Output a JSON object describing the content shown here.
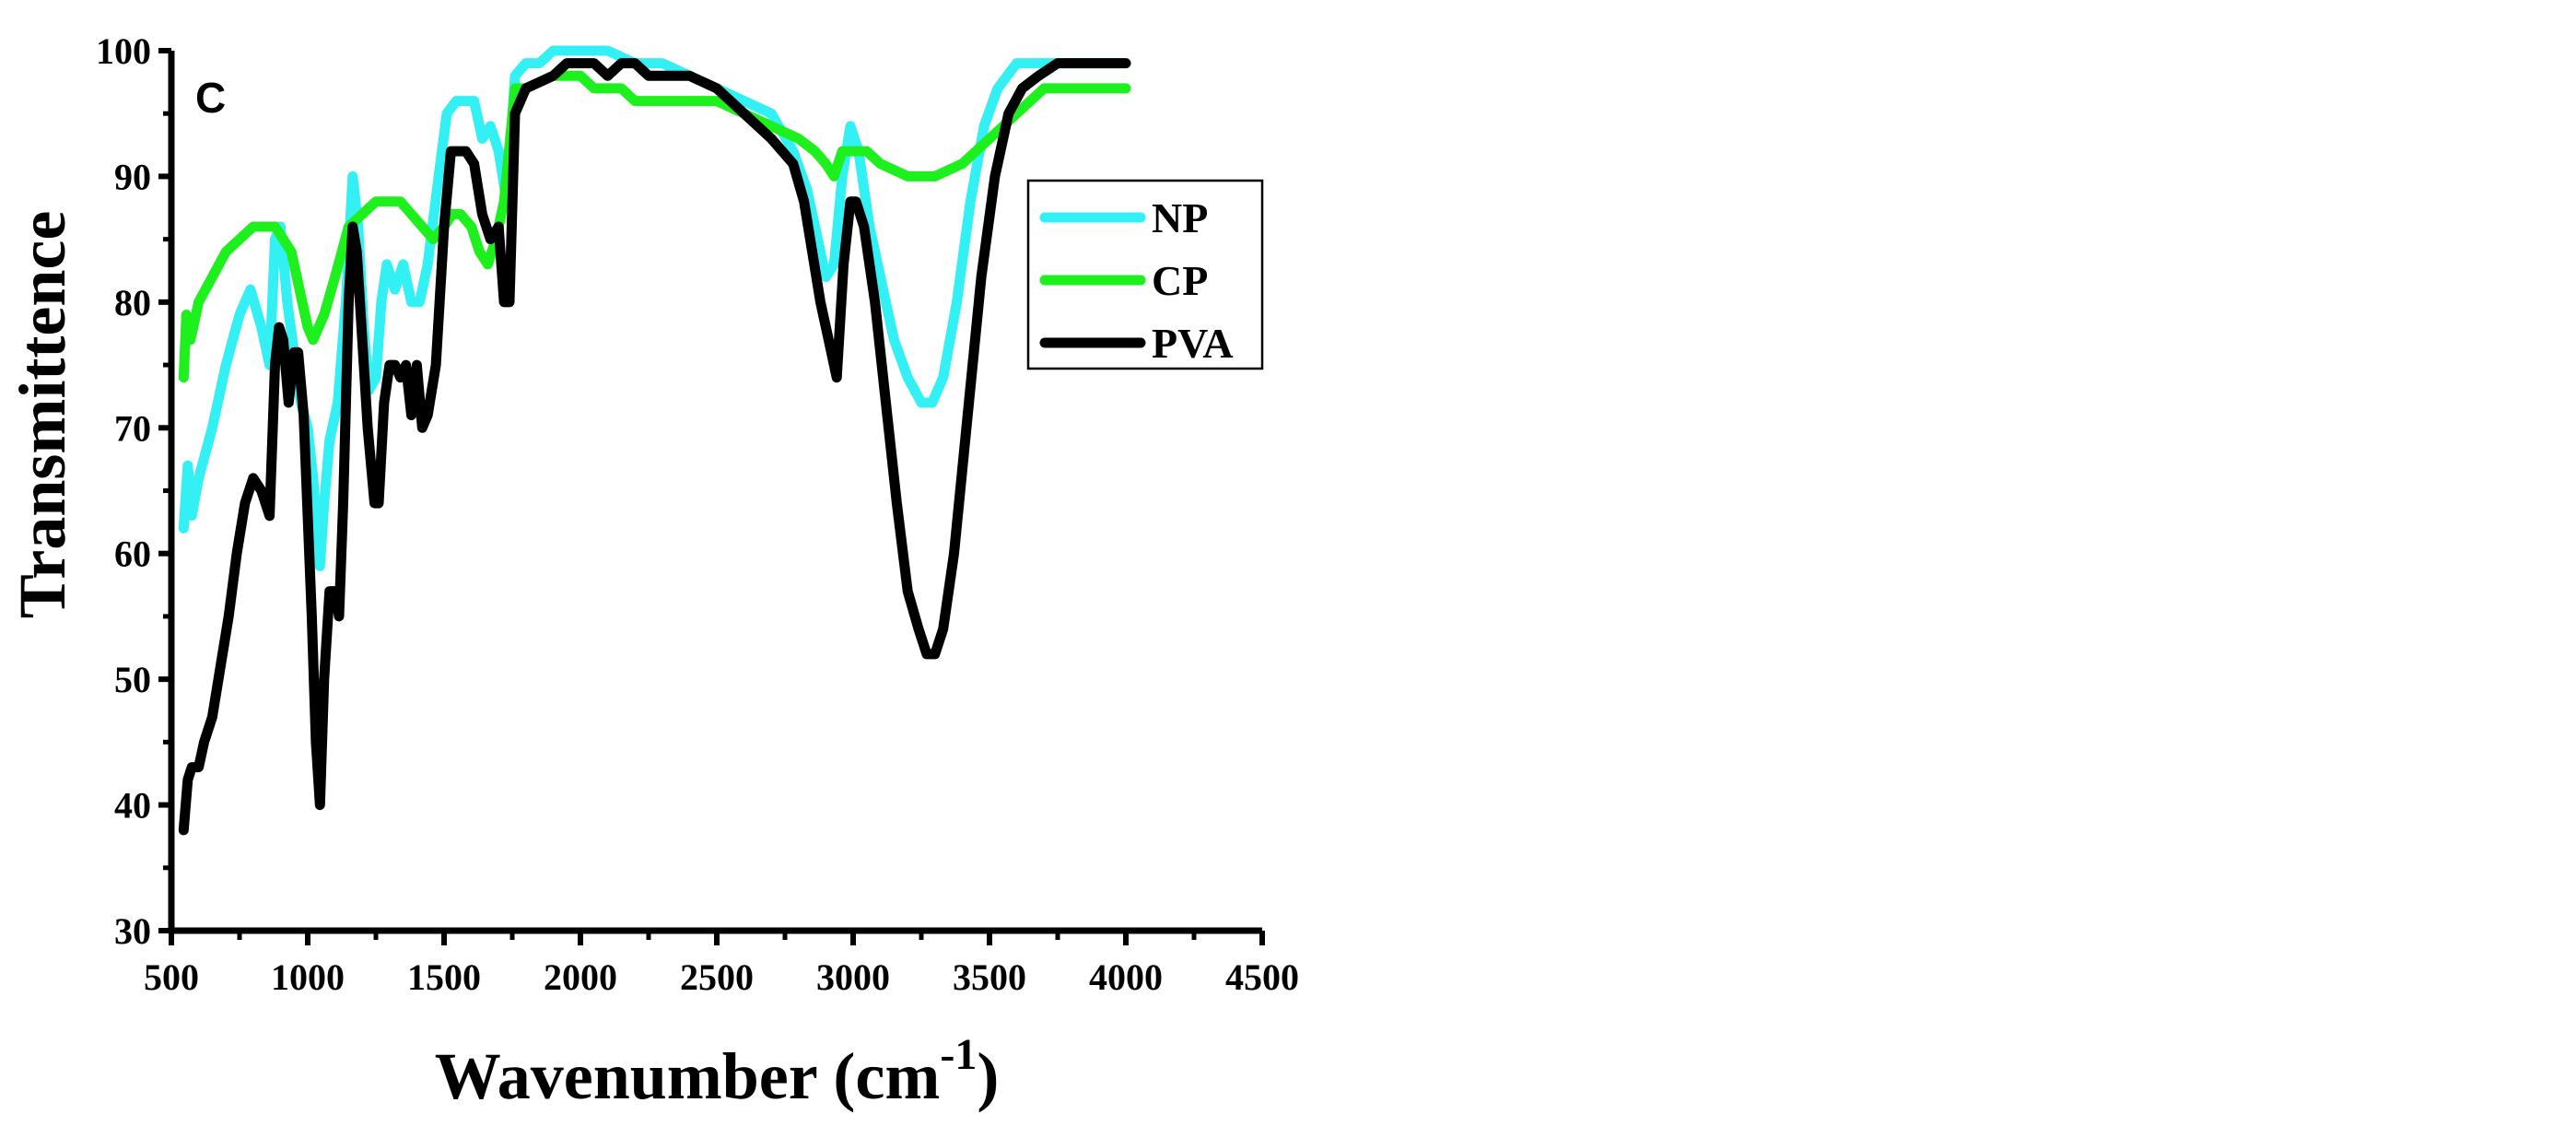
{
  "chart_data": {
    "type": "line",
    "panel_label": "C",
    "xlabel": "Wavenumber (cm",
    "xlabel_sup": "-1",
    "xlabel_close": ")",
    "ylabel": "Transmittence",
    "xlim": [
      500,
      4500
    ],
    "ylim": [
      30,
      100
    ],
    "xticks": [
      "500",
      "1000",
      "1500",
      "2000",
      "2500",
      "3000",
      "3500",
      "4000",
      "4500"
    ],
    "yticks": [
      "30",
      "40",
      "50",
      "60",
      "70",
      "80",
      "90",
      "100"
    ],
    "legend_position": "right",
    "series": [
      {
        "name": "NP",
        "color": "#33f0f5",
        "points": [
          [
            545,
            62
          ],
          [
            560,
            67
          ],
          [
            575,
            63
          ],
          [
            600,
            66
          ],
          [
            650,
            70
          ],
          [
            700,
            75
          ],
          [
            750,
            79
          ],
          [
            790,
            81
          ],
          [
            830,
            78
          ],
          [
            860,
            75
          ],
          [
            880,
            85
          ],
          [
            900,
            86
          ],
          [
            925,
            80
          ],
          [
            950,
            76
          ],
          [
            975,
            72
          ],
          [
            1000,
            70
          ],
          [
            1020,
            66
          ],
          [
            1045,
            59
          ],
          [
            1060,
            64
          ],
          [
            1080,
            69
          ],
          [
            1110,
            72
          ],
          [
            1140,
            80
          ],
          [
            1165,
            90
          ],
          [
            1185,
            86
          ],
          [
            1205,
            78
          ],
          [
            1225,
            73
          ],
          [
            1250,
            74
          ],
          [
            1270,
            80
          ],
          [
            1290,
            83
          ],
          [
            1320,
            81
          ],
          [
            1350,
            83
          ],
          [
            1380,
            80
          ],
          [
            1410,
            80
          ],
          [
            1440,
            83
          ],
          [
            1480,
            90
          ],
          [
            1510,
            95
          ],
          [
            1545,
            96
          ],
          [
            1580,
            96
          ],
          [
            1610,
            96
          ],
          [
            1640,
            93
          ],
          [
            1670,
            94
          ],
          [
            1700,
            92
          ],
          [
            1730,
            88
          ],
          [
            1760,
            98
          ],
          [
            1800,
            99
          ],
          [
            1850,
            99
          ],
          [
            1900,
            100
          ],
          [
            1950,
            100
          ],
          [
            2000,
            100
          ],
          [
            2100,
            100
          ],
          [
            2200,
            99
          ],
          [
            2300,
            99
          ],
          [
            2400,
            98
          ],
          [
            2500,
            97
          ],
          [
            2600,
            96
          ],
          [
            2700,
            95
          ],
          [
            2780,
            92
          ],
          [
            2830,
            89
          ],
          [
            2860,
            86
          ],
          [
            2900,
            82
          ],
          [
            2930,
            83
          ],
          [
            2960,
            90
          ],
          [
            2990,
            94
          ],
          [
            3020,
            92
          ],
          [
            3060,
            86
          ],
          [
            3100,
            82
          ],
          [
            3150,
            77
          ],
          [
            3200,
            74
          ],
          [
            3250,
            72
          ],
          [
            3290,
            72
          ],
          [
            3330,
            74
          ],
          [
            3380,
            80
          ],
          [
            3430,
            88
          ],
          [
            3480,
            94
          ],
          [
            3530,
            97
          ],
          [
            3600,
            99
          ],
          [
            3700,
            99
          ],
          [
            3800,
            99
          ],
          [
            3900,
            99
          ],
          [
            4000,
            99
          ]
        ]
      },
      {
        "name": "CP",
        "color": "#1ef01e",
        "points": [
          [
            545,
            74
          ],
          [
            555,
            79
          ],
          [
            570,
            77
          ],
          [
            600,
            80
          ],
          [
            650,
            82
          ],
          [
            700,
            84
          ],
          [
            750,
            85
          ],
          [
            800,
            86
          ],
          [
            850,
            86
          ],
          [
            880,
            86
          ],
          [
            910,
            85
          ],
          [
            940,
            84
          ],
          [
            970,
            81
          ],
          [
            1000,
            78
          ],
          [
            1020,
            77
          ],
          [
            1060,
            79
          ],
          [
            1100,
            82
          ],
          [
            1150,
            86
          ],
          [
            1200,
            87
          ],
          [
            1250,
            88
          ],
          [
            1300,
            88
          ],
          [
            1340,
            88
          ],
          [
            1380,
            87
          ],
          [
            1420,
            86
          ],
          [
            1460,
            85
          ],
          [
            1500,
            86
          ],
          [
            1530,
            87
          ],
          [
            1560,
            87
          ],
          [
            1600,
            86
          ],
          [
            1630,
            84
          ],
          [
            1660,
            83
          ],
          [
            1690,
            85
          ],
          [
            1720,
            88
          ],
          [
            1760,
            97
          ],
          [
            1800,
            97
          ],
          [
            1900,
            98
          ],
          [
            2000,
            98
          ],
          [
            2050,
            97
          ],
          [
            2100,
            97
          ],
          [
            2150,
            97
          ],
          [
            2200,
            96
          ],
          [
            2300,
            96
          ],
          [
            2400,
            96
          ],
          [
            2500,
            96
          ],
          [
            2600,
            95
          ],
          [
            2700,
            94
          ],
          [
            2800,
            93
          ],
          [
            2860,
            92
          ],
          [
            2900,
            91
          ],
          [
            2930,
            90
          ],
          [
            2960,
            92
          ],
          [
            3000,
            92
          ],
          [
            3050,
            92
          ],
          [
            3100,
            91
          ],
          [
            3200,
            90
          ],
          [
            3250,
            90
          ],
          [
            3300,
            90
          ],
          [
            3400,
            91
          ],
          [
            3500,
            93
          ],
          [
            3600,
            95
          ],
          [
            3650,
            96
          ],
          [
            3700,
            97
          ],
          [
            3800,
            97
          ],
          [
            3900,
            97
          ],
          [
            4000,
            97
          ]
        ]
      },
      {
        "name": "PVA",
        "color": "#000000",
        "points": [
          [
            545,
            38
          ],
          [
            560,
            42
          ],
          [
            575,
            43
          ],
          [
            600,
            43
          ],
          [
            620,
            45
          ],
          [
            650,
            47
          ],
          [
            680,
            51
          ],
          [
            710,
            55
          ],
          [
            740,
            60
          ],
          [
            770,
            64
          ],
          [
            800,
            66
          ],
          [
            830,
            65
          ],
          [
            860,
            63
          ],
          [
            880,
            75
          ],
          [
            895,
            78
          ],
          [
            910,
            77
          ],
          [
            930,
            72
          ],
          [
            950,
            76
          ],
          [
            965,
            76
          ],
          [
            985,
            71
          ],
          [
            1000,
            63
          ],
          [
            1015,
            55
          ],
          [
            1030,
            45
          ],
          [
            1045,
            40
          ],
          [
            1060,
            50
          ],
          [
            1080,
            57
          ],
          [
            1100,
            57
          ],
          [
            1115,
            55
          ],
          [
            1130,
            64
          ],
          [
            1150,
            80
          ],
          [
            1165,
            86
          ],
          [
            1180,
            84
          ],
          [
            1200,
            77
          ],
          [
            1220,
            70
          ],
          [
            1245,
            64
          ],
          [
            1260,
            64
          ],
          [
            1280,
            72
          ],
          [
            1300,
            75
          ],
          [
            1320,
            75
          ],
          [
            1340,
            74
          ],
          [
            1360,
            75
          ],
          [
            1380,
            71
          ],
          [
            1400,
            75
          ],
          [
            1420,
            70
          ],
          [
            1440,
            71
          ],
          [
            1470,
            75
          ],
          [
            1500,
            86
          ],
          [
            1525,
            92
          ],
          [
            1550,
            92
          ],
          [
            1580,
            92
          ],
          [
            1610,
            91
          ],
          [
            1640,
            87
          ],
          [
            1670,
            85
          ],
          [
            1700,
            86
          ],
          [
            1720,
            80
          ],
          [
            1740,
            80
          ],
          [
            1760,
            95
          ],
          [
            1800,
            97
          ],
          [
            1900,
            98
          ],
          [
            1950,
            99
          ],
          [
            2000,
            99
          ],
          [
            2050,
            99
          ],
          [
            2100,
            98
          ],
          [
            2150,
            99
          ],
          [
            2200,
            99
          ],
          [
            2250,
            98
          ],
          [
            2300,
            98
          ],
          [
            2400,
            98
          ],
          [
            2500,
            97
          ],
          [
            2600,
            95
          ],
          [
            2700,
            93
          ],
          [
            2780,
            91
          ],
          [
            2820,
            88
          ],
          [
            2850,
            84
          ],
          [
            2880,
            80
          ],
          [
            2910,
            77
          ],
          [
            2940,
            74
          ],
          [
            2965,
            83
          ],
          [
            2990,
            88
          ],
          [
            3010,
            88
          ],
          [
            3040,
            86
          ],
          [
            3080,
            80
          ],
          [
            3120,
            72
          ],
          [
            3160,
            64
          ],
          [
            3200,
            57
          ],
          [
            3240,
            54
          ],
          [
            3270,
            52
          ],
          [
            3300,
            52
          ],
          [
            3330,
            54
          ],
          [
            3370,
            60
          ],
          [
            3420,
            71
          ],
          [
            3470,
            82
          ],
          [
            3520,
            90
          ],
          [
            3570,
            95
          ],
          [
            3620,
            97
          ],
          [
            3680,
            98
          ],
          [
            3750,
            99
          ],
          [
            3850,
            99
          ],
          [
            3950,
            99
          ],
          [
            4000,
            99
          ]
        ]
      }
    ]
  }
}
